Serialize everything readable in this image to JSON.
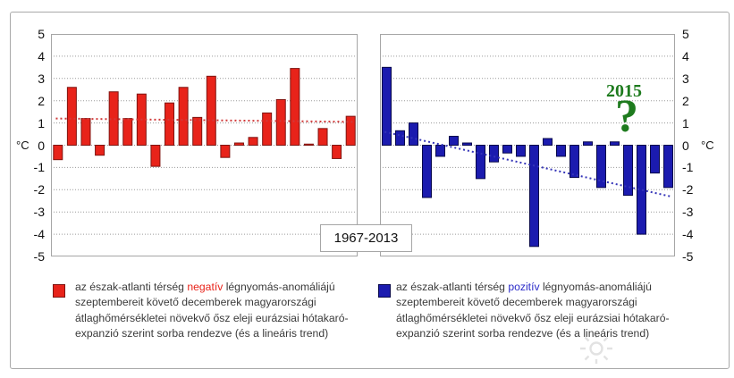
{
  "axis": {
    "unit": "°C",
    "ticks": [
      5,
      4,
      3,
      2,
      1,
      0,
      -1,
      -2,
      -3,
      -4,
      -5
    ]
  },
  "period_label": "1967-2013",
  "annotation": {
    "year": "2015",
    "question_mark": "?",
    "color": "#1e7b1e"
  },
  "chart_data": [
    {
      "type": "bar",
      "name": "december-temps-after-negative-nao-septembers",
      "ylabel": "°C",
      "ylim": [
        -5,
        5
      ],
      "grid": true,
      "bar_color": "#e8231a",
      "bar_border": "#7f1410",
      "values": [
        -0.65,
        2.6,
        1.2,
        -0.45,
        2.4,
        1.2,
        2.3,
        -0.95,
        1.9,
        2.6,
        1.25,
        3.1,
        -0.55,
        0.1,
        0.35,
        1.45,
        2.05,
        3.45,
        0.05,
        0.75,
        -0.6,
        1.3
      ],
      "trend": {
        "type": "linear",
        "start": 1.2,
        "end": 1.05,
        "color": "#d03a3a",
        "style": "dotted"
      }
    },
    {
      "type": "bar",
      "name": "december-temps-after-positive-nao-septembers",
      "ylabel": "°C",
      "ylim": [
        -5,
        5
      ],
      "grid": true,
      "bar_color": "#1b1baf",
      "bar_border": "#07074a",
      "values": [
        3.5,
        0.65,
        1.0,
        -2.35,
        -0.5,
        0.4,
        0.1,
        -1.5,
        -0.75,
        -0.35,
        -0.5,
        -4.55,
        0.3,
        -0.5,
        -1.45,
        0.15,
        -1.9,
        0.15,
        -2.25,
        -4.0,
        -1.25,
        -1.9
      ],
      "trend": {
        "type": "linear",
        "start": 0.6,
        "end": -2.3,
        "color": "#3434b8",
        "style": "dotted"
      }
    }
  ],
  "legend_left": {
    "pre": "az észak-atlanti térség ",
    "keyword": "negatív",
    "keyword_color": "#e8231a",
    "post": " légnyomás-anomáliájú szeptembereit követő decemberek magyarországi átlaghőmérsékletei növekvő ősz eleji eurázsiai hótakaró-expanzió szerint sorba rendezve (és a lineáris trend)"
  },
  "legend_right": {
    "pre": "az észak-atlanti térség ",
    "keyword": "pozitív",
    "keyword_color": "#2a2ac8",
    "post": " légnyomás-anomáliájú szeptembereit követő decemberek magyarországi átlaghőmérsékletei növekvő ősz eleji eurázsiai hótakaró-expanzió szerint sorba rendezve (és a lineáris trend)"
  }
}
